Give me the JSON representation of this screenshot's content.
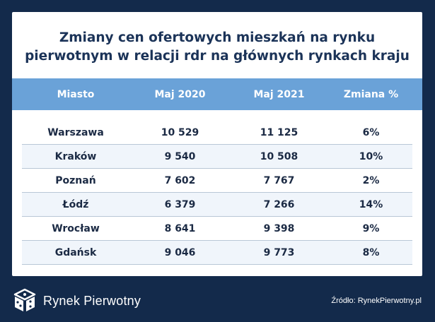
{
  "title_line1": "Zmiany cen ofertowych mieszkań na rynku",
  "title_line2": "pierwotnym w relacji rdr na głównych rynkach kraju",
  "columns": [
    "Miasto",
    "Maj 2020",
    "Maj 2021",
    "Zmiana %"
  ],
  "rows": [
    {
      "city": "Warszawa",
      "may2020": "10 529",
      "may2021": "11 125",
      "change": "6%"
    },
    {
      "city": "Kraków",
      "may2020": "9 540",
      "may2021": "10 508",
      "change": "10%"
    },
    {
      "city": "Poznań",
      "may2020": "7 602",
      "may2021": "7 767",
      "change": "2%"
    },
    {
      "city": "Łódź",
      "may2020": "6 379",
      "may2021": "7 266",
      "change": "14%"
    },
    {
      "city": "Wrocław",
      "may2020": "8 641",
      "may2021": "9 398",
      "change": "9%"
    },
    {
      "city": "Gdańsk",
      "may2020": "9 046",
      "may2021": "9 773",
      "change": "8%"
    }
  ],
  "brand": "Rynek Pierwotny",
  "source": "Źródło: RynekPierwotny.pl",
  "colors": {
    "background": "#132a4b",
    "header": "#6aa2d8",
    "title": "#1b3358"
  }
}
